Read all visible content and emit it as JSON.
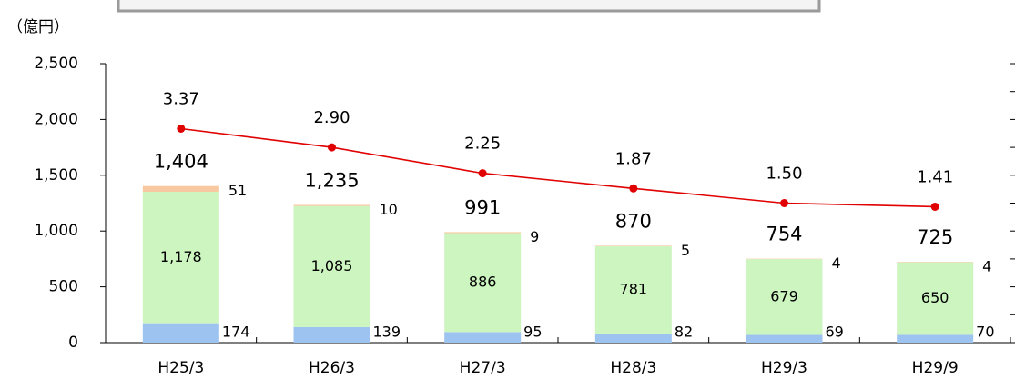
{
  "chart_data": {
    "type": "stacked_bar_line",
    "unit_label": "（億円）",
    "categories": [
      "H25/3",
      "H26/3",
      "H27/3",
      "H28/3",
      "H29/3",
      "H29/9"
    ],
    "series": [
      {
        "color": "#9dc3f0",
        "values": [
          174,
          139,
          95,
          82,
          69,
          70
        ]
      },
      {
        "color": "#ccf5c0",
        "values": [
          1178,
          1085,
          886,
          781,
          679,
          650
        ],
        "value_labels": [
          "1,178",
          "1,085",
          "886",
          "781",
          "679",
          "650"
        ]
      },
      {
        "color": "#f8c9a0",
        "values": [
          51,
          10,
          9,
          5,
          4,
          4
        ]
      }
    ],
    "totals": [
      1404,
      1235,
      991,
      870,
      754,
      725
    ],
    "total_labels": [
      "1,404",
      "1,235",
      "991",
      "870",
      "754",
      "725"
    ],
    "line": {
      "color": "#e00000",
      "axis": "y2",
      "values": [
        3.37,
        2.9,
        2.25,
        1.87,
        1.5,
        1.41
      ],
      "value_labels": [
        "3.37",
        "2.90",
        "2.25",
        "1.87",
        "1.50",
        "1.41"
      ]
    },
    "ylim": [
      0,
      2500
    ],
    "yticks": [
      0,
      500,
      {
        "value": 1000,
        "label": "1,000"
      },
      {
        "value": 1500,
        "label": "1,500"
      },
      {
        "value": 2000,
        "label": "2,000"
      },
      {
        "value": 2500,
        "label": "2,500"
      }
    ],
    "y2lim": [
      -2,
      5
    ],
    "y2ticks": [
      -2,
      -1.3,
      -0.6,
      0.1,
      0.8,
      1.5,
      2.2,
      2.9,
      3.6,
      4.3,
      5
    ]
  }
}
